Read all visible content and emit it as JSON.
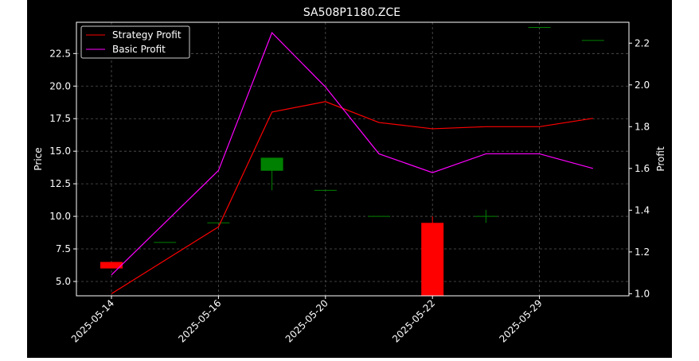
{
  "chart_data": {
    "type": "candlestick_with_lines",
    "title": "SA508P1180.ZCE",
    "ylabel_left": "Price",
    "ylabel_right": "Profit",
    "xlabel": "",
    "ylim_left": [
      3.9,
      24.9
    ],
    "ylim_right": [
      0.99,
      2.3
    ],
    "yticks_left": [
      "5.0",
      "7.5",
      "10.0",
      "12.5",
      "15.0",
      "17.5",
      "20.0",
      "22.5"
    ],
    "yticks_right": [
      "1.0",
      "1.2",
      "1.4",
      "1.6",
      "1.8",
      "2.0",
      "2.2"
    ],
    "xticks": [
      {
        "i": 0,
        "label": "2025-05-14"
      },
      {
        "i": 2,
        "label": "2025-05-16"
      },
      {
        "i": 4,
        "label": "2025-05-20"
      },
      {
        "i": 6,
        "label": "2025-05-22"
      },
      {
        "i": 8,
        "label": "2025-05-29"
      }
    ],
    "grid": true,
    "legend_position": "top-left",
    "candles": [
      {
        "i": 0,
        "open": 6.5,
        "high": 6.5,
        "low": 6.0,
        "close": 6.0
      },
      {
        "i": 1,
        "open": 8.0,
        "high": 8.0,
        "low": 8.0,
        "close": 8.0
      },
      {
        "i": 2,
        "open": 9.5,
        "high": 9.5,
        "low": 9.5,
        "close": 9.5
      },
      {
        "i": 3,
        "open": 13.5,
        "high": 14.5,
        "low": 12.0,
        "close": 14.5
      },
      {
        "i": 4,
        "open": 12.0,
        "high": 12.0,
        "low": 12.0,
        "close": 12.0
      },
      {
        "i": 5,
        "open": 10.0,
        "high": 10.0,
        "low": 10.0,
        "close": 10.0
      },
      {
        "i": 6,
        "open": 9.5,
        "high": 10.0,
        "low": 3.9,
        "close": 3.9
      },
      {
        "i": 7,
        "open": 10.0,
        "high": 10.5,
        "low": 9.5,
        "close": 10.0
      },
      {
        "i": 8,
        "open": 24.5,
        "high": 24.5,
        "low": 24.5,
        "close": 24.5
      },
      {
        "i": 9,
        "open": 23.5,
        "high": 23.5,
        "low": 23.5,
        "close": 23.5
      }
    ],
    "series": [
      {
        "name": "Strategy Profit",
        "color": "#ff0000",
        "axis": "right",
        "points": [
          [
            0,
            1.0
          ],
          [
            2,
            1.32
          ],
          [
            3,
            1.87
          ],
          [
            4,
            1.92
          ],
          [
            5,
            1.82
          ],
          [
            6,
            1.79
          ],
          [
            7,
            1.8
          ],
          [
            8,
            1.8
          ],
          [
            9,
            1.84
          ]
        ]
      },
      {
        "name": "Basic Profit",
        "color": "#ff00ff",
        "axis": "right",
        "points": [
          [
            0,
            1.09
          ],
          [
            2,
            1.59
          ],
          [
            3,
            2.25
          ],
          [
            4,
            1.99
          ],
          [
            5,
            1.67
          ],
          [
            6,
            1.58
          ],
          [
            7,
            1.67
          ],
          [
            8,
            1.67
          ],
          [
            9,
            1.6
          ]
        ]
      }
    ],
    "colors": {
      "up": "#008000",
      "down": "#ff0000",
      "background": "#000000",
      "grid": "#555555"
    }
  }
}
